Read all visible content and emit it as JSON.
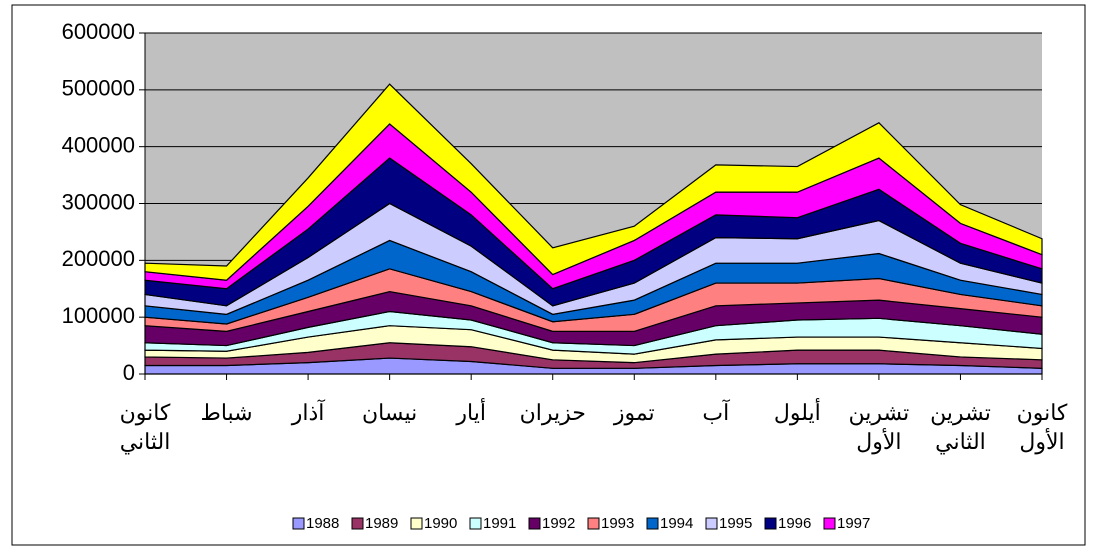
{
  "chart_data": {
    "type": "stacked_area",
    "categories": [
      "كانون الثاني",
      "شباط",
      "آذار",
      "نيسان",
      "أيار",
      "حزيران",
      "تموز",
      "آب",
      "أيلول",
      "تشرين الأول",
      "تشرين الثاني",
      "كانون الأول"
    ],
    "series": [
      {
        "name": "1988",
        "color": "#9999ff",
        "values": [
          15000,
          15000,
          20000,
          28000,
          22000,
          10000,
          10000,
          15000,
          18000,
          18000,
          15000,
          10000
        ]
      },
      {
        "name": "1989",
        "color": "#993366",
        "values": [
          15000,
          13000,
          18000,
          27000,
          26000,
          15000,
          10000,
          20000,
          24000,
          24000,
          15000,
          15000
        ]
      },
      {
        "name": "1990",
        "color": "#ffffcc",
        "values": [
          12000,
          12000,
          27000,
          30000,
          30000,
          17000,
          15000,
          25000,
          23000,
          23000,
          25000,
          20000
        ]
      },
      {
        "name": "1991",
        "color": "#ccffff",
        "values": [
          13000,
          10000,
          17000,
          25000,
          17000,
          13000,
          15000,
          25000,
          30000,
          33000,
          30000,
          25000
        ]
      },
      {
        "name": "1992",
        "color": "#660066",
        "values": [
          30000,
          25000,
          28000,
          35000,
          25000,
          20000,
          25000,
          35000,
          30000,
          32000,
          30000,
          30000
        ]
      },
      {
        "name": "1993",
        "color": "#ff8080",
        "values": [
          15000,
          13000,
          25000,
          40000,
          25000,
          17000,
          30000,
          40000,
          35000,
          38000,
          25000,
          20000
        ]
      },
      {
        "name": "1994",
        "color": "#0066cc",
        "values": [
          20000,
          17000,
          30000,
          50000,
          35000,
          13000,
          25000,
          35000,
          35000,
          44000,
          25000,
          20000
        ]
      },
      {
        "name": "1995",
        "color": "#ccccff",
        "values": [
          20000,
          15000,
          40000,
          65000,
          45000,
          15000,
          30000,
          45000,
          43000,
          58000,
          30000,
          20000
        ]
      },
      {
        "name": "1996",
        "color": "#000080",
        "values": [
          25000,
          30000,
          50000,
          80000,
          55000,
          30000,
          40000,
          40000,
          37000,
          55000,
          35000,
          25000
        ]
      },
      {
        "name": "1997",
        "color": "#ff00ff",
        "values": [
          15000,
          15000,
          40000,
          60000,
          40000,
          25000,
          35000,
          40000,
          45000,
          55000,
          35000,
          25000
        ]
      },
      {
        "color": "#ffff00",
        "values": [
          15000,
          25000,
          50000,
          70000,
          50000,
          47000,
          25000,
          48000,
          45000,
          62000,
          33000,
          28000
        ]
      }
    ],
    "ylim": [
      0,
      600000
    ],
    "yticks": [
      0,
      100000,
      200000,
      300000,
      400000,
      500000,
      600000
    ],
    "grid": true,
    "legend": "bottom",
    "plot_background": "#c0c0c0"
  }
}
